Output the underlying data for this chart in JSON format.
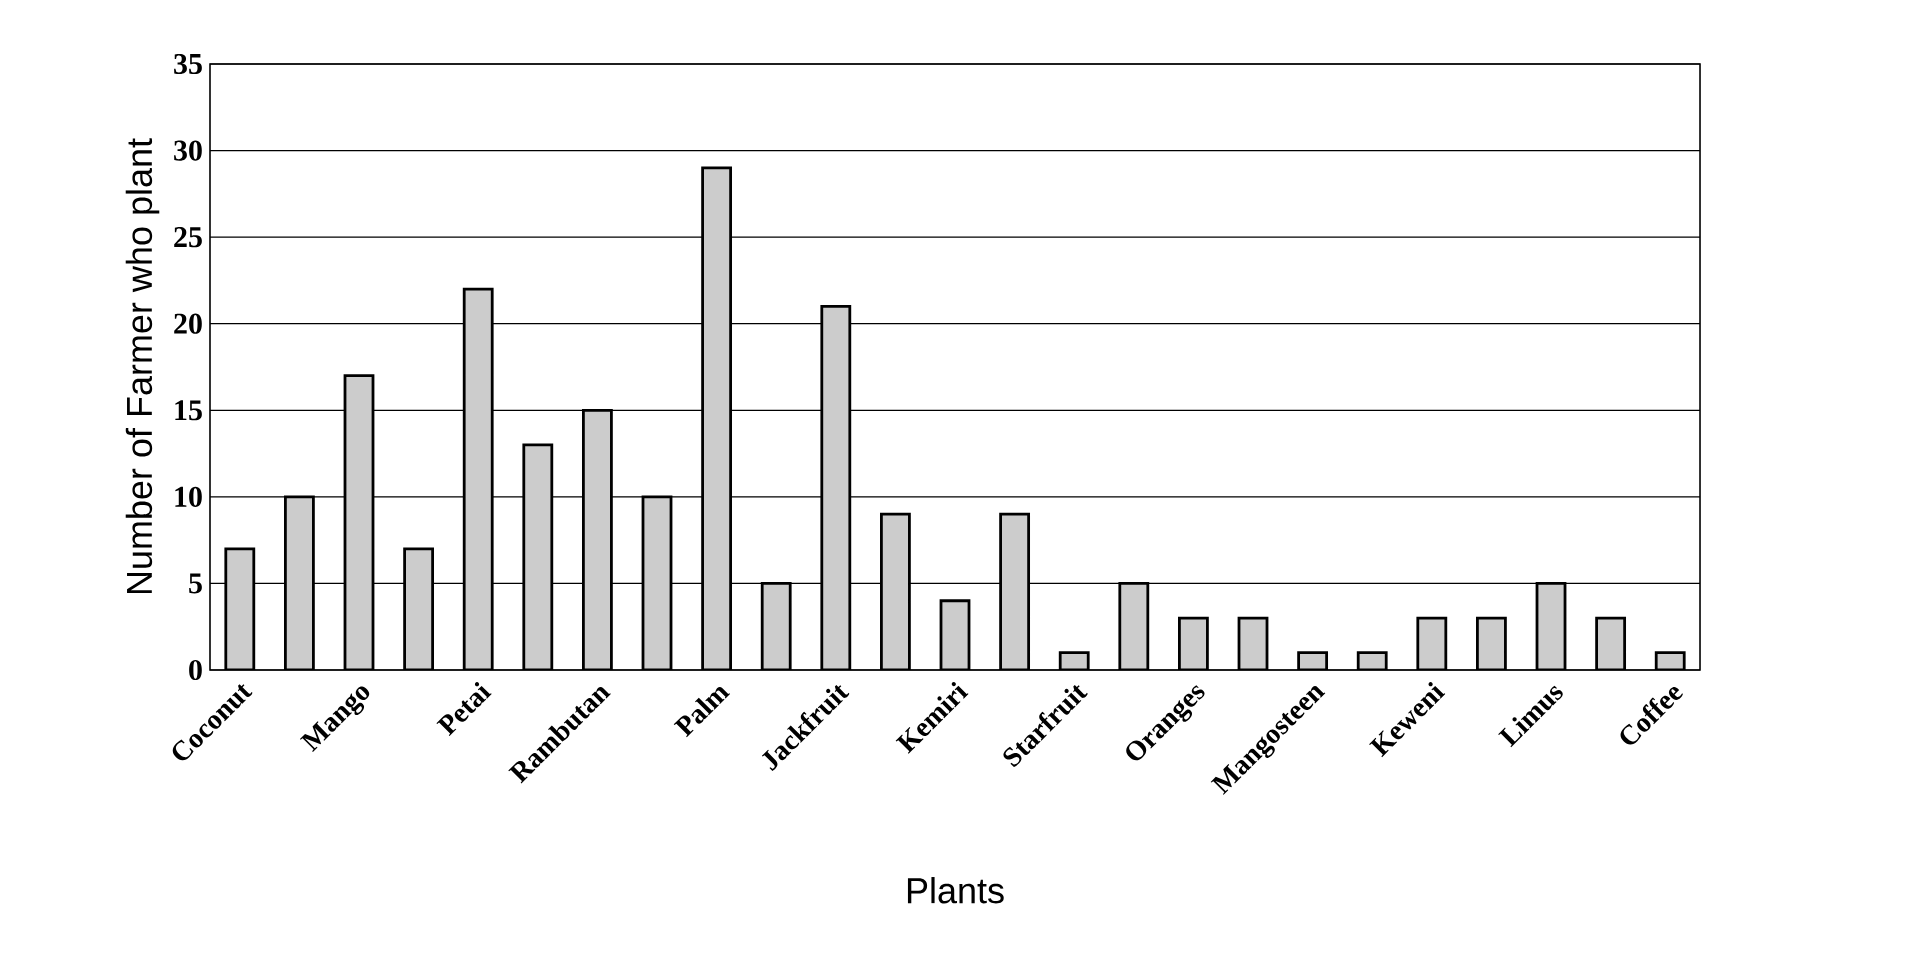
{
  "chart_data": {
    "type": "bar",
    "xlabel": "Plants",
    "ylabel": "Number of Farmer who plant",
    "categories": [
      "Coconut",
      null,
      "Mango",
      null,
      "Petai",
      null,
      "Rambutan",
      null,
      "Palm",
      null,
      "Jackfruit",
      null,
      "Kemiri",
      null,
      "Starfruit",
      null,
      "Oranges",
      null,
      "Mangosteen",
      null,
      "Keweni",
      null,
      "Limus",
      null,
      "Coffee"
    ],
    "values": [
      7,
      10,
      17,
      7,
      22,
      13,
      15,
      10,
      29,
      5,
      21,
      9,
      4,
      9,
      1,
      5,
      3,
      3,
      1,
      1,
      3,
      3,
      5,
      3,
      1
    ],
    "color": "#cccccc",
    "ylim": [
      0,
      35
    ],
    "yticks": [
      0,
      5,
      10,
      15,
      20,
      25,
      30,
      35
    ],
    "grid": "y"
  }
}
